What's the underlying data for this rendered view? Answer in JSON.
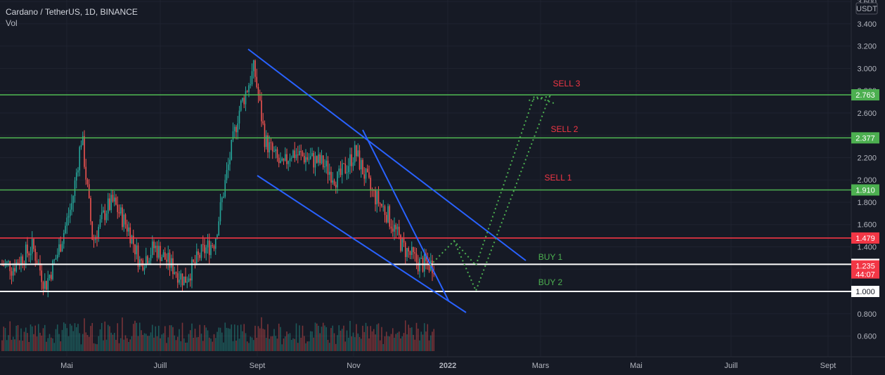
{
  "header": {
    "title": "Cardano / TetherUS, 1D, BINANCE",
    "indicator": "Vol"
  },
  "colors": {
    "background": "#161a25",
    "grid": "#1f2330",
    "up": "#26a69a",
    "down": "#ef5350",
    "green_level": "#4caf50",
    "red_level": "#f23645",
    "white_level": "#ffffff",
    "trendline": "#2962ff",
    "projection": "#4caf50",
    "sell_text": "#f23645",
    "buy_text": "#4caf50"
  },
  "chart_data": {
    "type": "candlestick",
    "price_scale_unit": "USDT",
    "y_ticks": [
      "3.600",
      "3.400",
      "3.200",
      "3.000",
      "2.800",
      "2.600",
      "2.400",
      "2.200",
      "2.000",
      "1.800",
      "1.600",
      "1.400",
      "1.200",
      "1.000",
      "0.800",
      "0.600"
    ],
    "x_ticks": [
      "Mai",
      "Juill",
      "Sept",
      "Nov",
      "2022",
      "Mars",
      "Mai",
      "Juill",
      "Sept"
    ],
    "horizontal_levels": [
      {
        "value": 2.763,
        "label": "2.763",
        "color": "green"
      },
      {
        "value": 2.377,
        "label": "2.377",
        "color": "green"
      },
      {
        "value": 1.91,
        "label": "1.910",
        "color": "green"
      },
      {
        "value": 1.479,
        "label": "1.479",
        "color": "red"
      },
      {
        "value": 1.243,
        "label": "1.243",
        "color": "white"
      },
      {
        "value": 1.0,
        "label": "1.000",
        "color": "white"
      }
    ],
    "current_price": {
      "value": "1.235",
      "countdown": "44:07"
    },
    "annotations": [
      {
        "text": "SELL 3",
        "kind": "sell"
      },
      {
        "text": "SELL 2",
        "kind": "sell"
      },
      {
        "text": "SELL 1",
        "kind": "sell"
      },
      {
        "text": "BUY 1",
        "kind": "buy"
      },
      {
        "text": "BUY 2",
        "kind": "buy"
      }
    ],
    "price_path": [
      [
        "2021-04-01",
        1.2
      ],
      [
        "2021-04-15",
        1.4
      ],
      [
        "2021-04-23",
        1.05
      ],
      [
        "2021-05-01",
        1.35
      ],
      [
        "2021-05-10",
        1.8
      ],
      [
        "2021-05-16",
        2.4
      ],
      [
        "2021-05-23",
        1.45
      ],
      [
        "2021-06-01",
        1.75
      ],
      [
        "2021-06-05",
        1.8
      ],
      [
        "2021-06-15",
        1.55
      ],
      [
        "2021-06-22",
        1.25
      ],
      [
        "2021-07-01",
        1.4
      ],
      [
        "2021-07-20",
        1.1
      ],
      [
        "2021-07-31",
        1.35
      ],
      [
        "2021-08-08",
        1.45
      ],
      [
        "2021-08-15",
        2.0
      ],
      [
        "2021-08-23",
        2.6
      ],
      [
        "2021-08-28",
        2.8
      ],
      [
        "2021-09-02",
        3.0
      ],
      [
        "2021-09-09",
        2.35
      ],
      [
        "2021-09-20",
        2.1
      ],
      [
        "2021-09-25",
        2.25
      ],
      [
        "2021-10-05",
        2.2
      ],
      [
        "2021-10-15",
        2.15
      ],
      [
        "2021-10-25",
        2.0
      ],
      [
        "2021-11-05",
        2.25
      ],
      [
        "2021-11-15",
        1.9
      ],
      [
        "2021-11-25",
        1.7
      ],
      [
        "2021-12-05",
        1.4
      ],
      [
        "2021-12-15",
        1.25
      ],
      [
        "2021-12-25",
        1.24
      ]
    ]
  }
}
